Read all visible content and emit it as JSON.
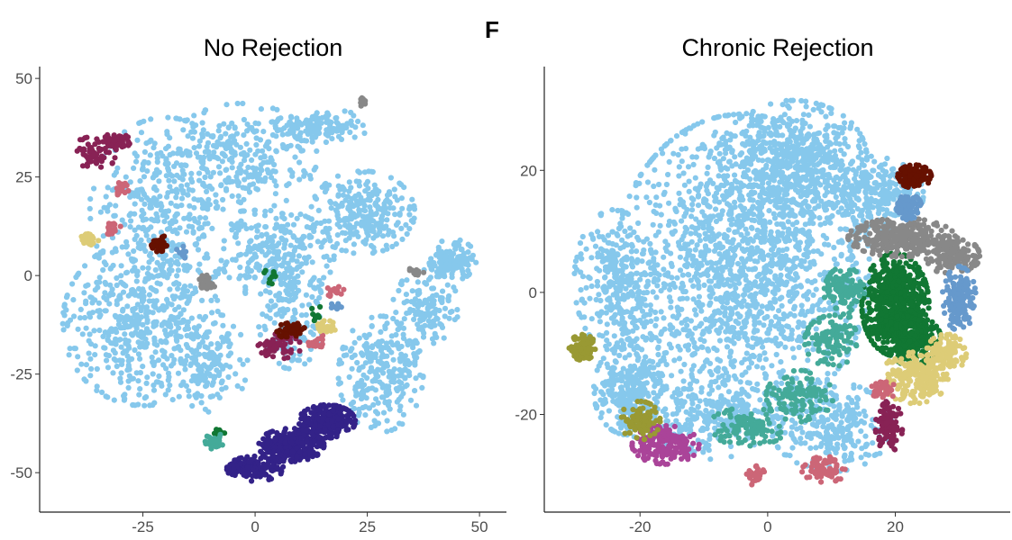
{
  "figure": {
    "panel_letter": "F"
  },
  "chart_data": [
    {
      "type": "scatter",
      "title": "No Rejection",
      "xlabel": "",
      "ylabel": "",
      "xlim": [
        -48,
        56
      ],
      "ylim": [
        -60,
        53
      ],
      "xticks": [
        -25,
        0,
        25,
        50
      ],
      "yticks": [
        -50,
        -25,
        0,
        25,
        50
      ],
      "xtick_labels": [
        "-25",
        "0",
        "25",
        "50"
      ],
      "ytick_labels": [
        "-50",
        "-25",
        "0",
        "25",
        "50"
      ],
      "grid": false,
      "legend": "none",
      "clusters": [
        {
          "color": "#86c8ec",
          "count": 2600,
          "blobs": [
            {
              "cx": -20,
              "cy": 17,
              "rx": 16,
              "ry": 22,
              "w": 3
            },
            {
              "cx": -3,
              "cy": 30,
              "rx": 16,
              "ry": 13,
              "w": 2
            },
            {
              "cx": 15,
              "cy": 38,
              "rx": 10,
              "ry": 4,
              "w": 1
            },
            {
              "cx": -25,
              "cy": -12,
              "rx": 17,
              "ry": 20,
              "w": 4
            },
            {
              "cx": -10,
              "cy": -22,
              "rx": 8,
              "ry": 12,
              "w": 1
            },
            {
              "cx": 5,
              "cy": 5,
              "rx": 12,
              "ry": 11,
              "w": 2
            },
            {
              "cx": 24,
              "cy": 16,
              "rx": 11,
              "ry": 10,
              "w": 2
            },
            {
              "cx": 8,
              "cy": -10,
              "rx": 7,
              "ry": 13,
              "w": 1
            },
            {
              "cx": 28,
              "cy": -25,
              "rx": 9,
              "ry": 14,
              "w": 2
            },
            {
              "cx": 38,
              "cy": -8,
              "rx": 7,
              "ry": 9,
              "w": 1
            },
            {
              "cx": 44,
              "cy": 4,
              "rx": 5,
              "ry": 5,
              "w": 1
            }
          ]
        },
        {
          "color": "#332288",
          "count": 650,
          "blobs": [
            {
              "cx": 0,
              "cy": -49,
              "rx": 6,
              "ry": 3,
              "w": 1
            },
            {
              "cx": 8,
              "cy": -43,
              "rx": 7,
              "ry": 4,
              "w": 2
            },
            {
              "cx": 16,
              "cy": -37,
              "rx": 6,
              "ry": 4,
              "w": 2
            }
          ]
        },
        {
          "color": "#882255",
          "count": 170,
          "blobs": [
            {
              "cx": -36,
              "cy": 31,
              "rx": 5,
              "ry": 4,
              "w": 1
            },
            {
              "cx": -31,
              "cy": 34,
              "rx": 3,
              "ry": 2,
              "w": 1
            },
            {
              "cx": 5,
              "cy": -18,
              "rx": 5,
              "ry": 3,
              "w": 1
            }
          ]
        },
        {
          "color": "#661100",
          "count": 110,
          "blobs": [
            {
              "cx": -21,
              "cy": 8,
              "rx": 2,
              "ry": 2,
              "w": 1
            },
            {
              "cx": 8,
              "cy": -14,
              "rx": 3,
              "ry": 2,
              "w": 1
            }
          ]
        },
        {
          "color": "#cc6677",
          "count": 70,
          "blobs": [
            {
              "cx": 18,
              "cy": -4,
              "rx": 2,
              "ry": 1.5,
              "w": 1
            },
            {
              "cx": 14,
              "cy": -17,
              "rx": 2,
              "ry": 2,
              "w": 1
            },
            {
              "cx": -30,
              "cy": 22,
              "rx": 2,
              "ry": 1.5,
              "w": 1
            },
            {
              "cx": -32,
              "cy": 12,
              "rx": 2,
              "ry": 1.5,
              "w": 1
            }
          ]
        },
        {
          "color": "#ddcc77",
          "count": 55,
          "blobs": [
            {
              "cx": -37,
              "cy": 9,
              "rx": 2,
              "ry": 1.5,
              "w": 1
            },
            {
              "cx": 16,
              "cy": -13,
              "rx": 2,
              "ry": 1.5,
              "w": 1
            }
          ]
        },
        {
          "color": "#888888",
          "count": 60,
          "blobs": [
            {
              "cx": -11,
              "cy": -2,
              "rx": 2,
              "ry": 2,
              "w": 2
            },
            {
              "cx": 36,
              "cy": 1,
              "rx": 2,
              "ry": 1,
              "w": 1
            },
            {
              "cx": 24,
              "cy": 44,
              "rx": 1,
              "ry": 1,
              "w": 1
            }
          ]
        },
        {
          "color": "#117733",
          "count": 30,
          "blobs": [
            {
              "cx": 14,
              "cy": -10,
              "rx": 2,
              "ry": 2,
              "w": 1
            },
            {
              "cx": -8,
              "cy": -40,
              "rx": 1.5,
              "ry": 1,
              "w": 1
            },
            {
              "cx": 4,
              "cy": 0,
              "rx": 2,
              "ry": 2,
              "w": 1
            }
          ]
        },
        {
          "color": "#44aa99",
          "count": 35,
          "blobs": [
            {
              "cx": -9,
              "cy": -42,
              "rx": 2,
              "ry": 2,
              "w": 1
            }
          ]
        },
        {
          "color": "#6699cc",
          "count": 20,
          "blobs": [
            {
              "cx": -16,
              "cy": 6,
              "rx": 1.5,
              "ry": 1.5,
              "w": 1
            },
            {
              "cx": 18,
              "cy": -8,
              "rx": 1.5,
              "ry": 1,
              "w": 1
            }
          ]
        }
      ]
    },
    {
      "type": "scatter",
      "title": "Chronic Rejection",
      "xlabel": "",
      "ylabel": "",
      "xlim": [
        -35,
        38
      ],
      "ylim": [
        -36,
        37
      ],
      "xticks": [
        -20,
        0,
        20
      ],
      "yticks": [
        -20,
        0,
        20
      ],
      "xtick_labels": [
        "-20",
        "0",
        "20"
      ],
      "ytick_labels": [
        "-20",
        "0",
        "20"
      ],
      "grid": false,
      "legend": "none",
      "clusters": [
        {
          "color": "#86c8ec",
          "count": 3600,
          "blobs": [
            {
              "cx": -4,
              "cy": 4,
              "rx": 19,
              "ry": 24,
              "w": 6
            },
            {
              "cx": -24,
              "cy": 2,
              "rx": 6,
              "ry": 11,
              "w": 1
            },
            {
              "cx": 4,
              "cy": 22,
              "rx": 11,
              "ry": 9,
              "w": 2
            },
            {
              "cx": -10,
              "cy": -20,
              "rx": 12,
              "ry": 7,
              "w": 1
            },
            {
              "cx": 10,
              "cy": -22,
              "rx": 9,
              "ry": 7,
              "w": 1
            },
            {
              "cx": 16,
              "cy": 16,
              "rx": 8,
              "ry": 6,
              "w": 1
            },
            {
              "cx": -22,
              "cy": -16,
              "rx": 5,
              "ry": 7,
              "w": 1
            }
          ]
        },
        {
          "color": "#117733",
          "count": 850,
          "blobs": [
            {
              "cx": 20,
              "cy": -2,
              "rx": 5,
              "ry": 8,
              "w": 3
            },
            {
              "cx": 23,
              "cy": -8,
              "rx": 4,
              "ry": 4,
              "w": 1
            }
          ]
        },
        {
          "color": "#888888",
          "count": 450,
          "blobs": [
            {
              "cx": 21,
              "cy": 9,
              "rx": 8,
              "ry": 3,
              "w": 2
            },
            {
              "cx": 29,
              "cy": 6,
              "rx": 4,
              "ry": 3,
              "w": 1
            }
          ]
        },
        {
          "color": "#44aa99",
          "count": 450,
          "blobs": [
            {
              "cx": 10,
              "cy": -8,
              "rx": 4,
              "ry": 4,
              "w": 1
            },
            {
              "cx": 5,
              "cy": -17,
              "rx": 5,
              "ry": 4,
              "w": 1
            },
            {
              "cx": -3,
              "cy": -22,
              "rx": 6,
              "ry": 3,
              "w": 1
            },
            {
              "cx": 12,
              "cy": 0,
              "rx": 3,
              "ry": 4,
              "w": 1
            }
          ]
        },
        {
          "color": "#ddcc77",
          "count": 320,
          "blobs": [
            {
              "cx": 23,
              "cy": -14,
              "rx": 5,
              "ry": 4,
              "w": 2
            },
            {
              "cx": 28,
              "cy": -10,
              "rx": 3,
              "ry": 3,
              "w": 1
            }
          ]
        },
        {
          "color": "#6699cc",
          "count": 230,
          "blobs": [
            {
              "cx": 30,
              "cy": -1,
              "rx": 2.5,
              "ry": 5,
              "w": 2
            },
            {
              "cx": 22,
              "cy": 14,
              "rx": 2,
              "ry": 2,
              "w": 1
            }
          ]
        },
        {
          "color": "#aa4499",
          "count": 180,
          "blobs": [
            {
              "cx": -16,
              "cy": -25,
              "rx": 5,
              "ry": 3,
              "w": 1
            }
          ]
        },
        {
          "color": "#cc6677",
          "count": 150,
          "blobs": [
            {
              "cx": 9,
              "cy": -29,
              "rx": 3.5,
              "ry": 2,
              "w": 2
            },
            {
              "cx": -2,
              "cy": -30,
              "rx": 1.5,
              "ry": 1.5,
              "w": 1
            },
            {
              "cx": 18,
              "cy": -16,
              "rx": 2,
              "ry": 1.5,
              "w": 1
            }
          ]
        },
        {
          "color": "#999933",
          "count": 200,
          "blobs": [
            {
              "cx": -29,
              "cy": -9,
              "rx": 2,
              "ry": 2,
              "w": 1
            },
            {
              "cx": -20,
              "cy": -21,
              "rx": 3,
              "ry": 3,
              "w": 1
            }
          ]
        },
        {
          "color": "#661100",
          "count": 130,
          "blobs": [
            {
              "cx": 23,
              "cy": 19,
              "rx": 2.5,
              "ry": 1.8,
              "w": 1
            }
          ]
        },
        {
          "color": "#882255",
          "count": 110,
          "blobs": [
            {
              "cx": 19,
              "cy": -22,
              "rx": 2,
              "ry": 4,
              "w": 1
            }
          ]
        }
      ]
    }
  ]
}
